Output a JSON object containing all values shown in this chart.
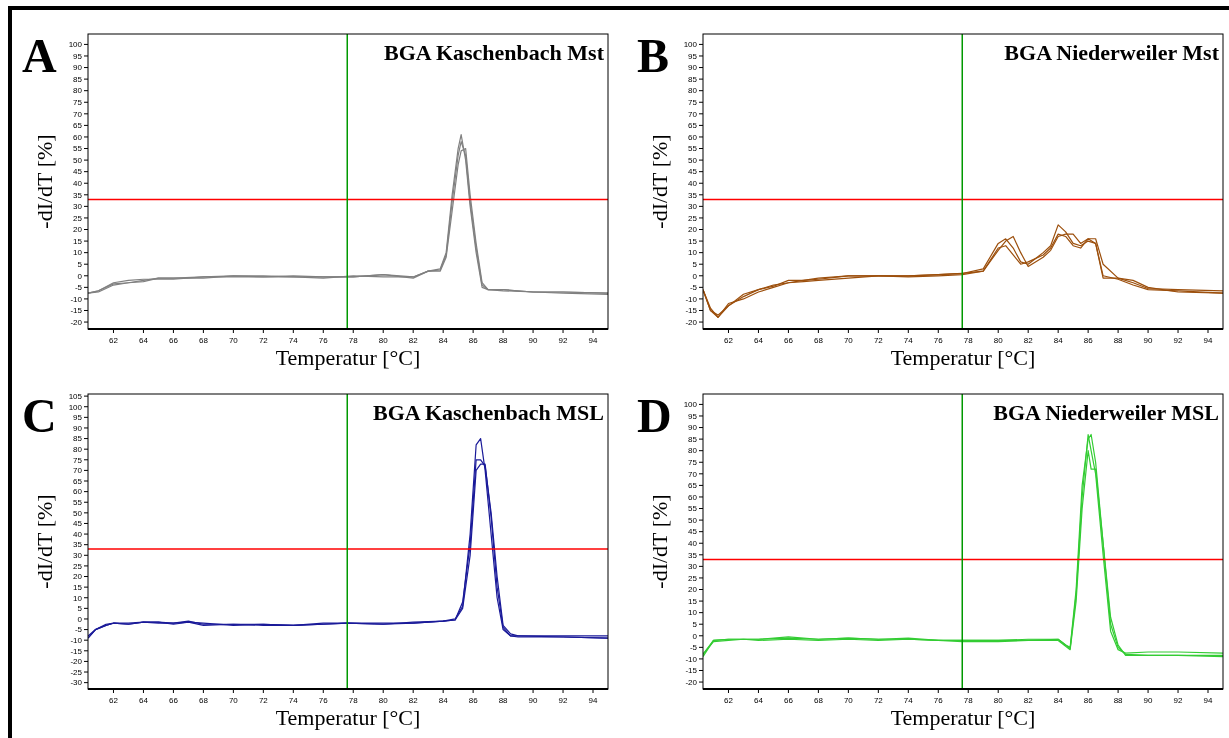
{
  "chart_data": [
    {
      "type": "line",
      "title": "BGA Kaschenbach Mst",
      "xlabel": "Temperatur [°C]",
      "ylabel": "-dI/dT [%]",
      "annotations": [
        "A"
      ],
      "xlim": [
        60.3,
        95
      ],
      "ylim": [
        -23,
        104.5
      ],
      "xticks": [
        62,
        64,
        66,
        68,
        70,
        72,
        74,
        76,
        78,
        80,
        82,
        84,
        86,
        88,
        90,
        92,
        94
      ],
      "yticks": [
        -20,
        -15,
        -10,
        -5,
        0,
        5,
        10,
        15,
        20,
        25,
        30,
        35,
        40,
        45,
        50,
        55,
        60,
        65,
        70,
        75,
        80,
        85,
        90,
        95,
        100
      ],
      "grid": false,
      "line_style": "solid",
      "ref_lines": [
        {
          "axis": "y",
          "value": 33,
          "color": "#ff0000"
        },
        {
          "axis": "x",
          "value": 77.6,
          "color": "#009900"
        }
      ],
      "series": [
        {
          "color": "#808080",
          "x": [
            60.3,
            61,
            62,
            63,
            64,
            65,
            66,
            68,
            70,
            72,
            74,
            76,
            78,
            80,
            82,
            83,
            83.8,
            84.2,
            84.6,
            85,
            85.2,
            85.5,
            85.8,
            86.2,
            86.6,
            87,
            88,
            90,
            92,
            95
          ],
          "values": [
            -7.5,
            -7,
            -4,
            -3,
            -2,
            -1,
            -1,
            -1,
            0,
            -0.5,
            -0.5,
            -0.5,
            -0.5,
            0.5,
            -0.5,
            2,
            3,
            10,
            35,
            55,
            61,
            50,
            30,
            10,
            -5,
            -6,
            -6,
            -7,
            -7,
            -7.5
          ]
        },
        {
          "color": "#808080",
          "x": [
            60.3,
            61,
            62,
            63,
            64,
            65,
            66,
            68,
            70,
            72,
            74,
            76,
            78,
            80,
            82,
            83,
            83.8,
            84.2,
            84.6,
            85,
            85.2,
            85.5,
            85.8,
            86.2,
            86.6,
            87,
            88,
            90,
            92,
            95
          ],
          "values": [
            -7.5,
            -6.5,
            -3,
            -2,
            -1.5,
            -1.5,
            -1.5,
            -0.5,
            0,
            0,
            -0.5,
            -1,
            0,
            -0.5,
            -0.5,
            2,
            2.5,
            9,
            32,
            52,
            58,
            52,
            32,
            12,
            -4,
            -6,
            -6.5,
            -7,
            -7.5,
            -8
          ]
        },
        {
          "color": "#808080",
          "x": [
            60.3,
            61,
            62,
            63,
            64,
            65,
            66,
            68,
            70,
            72,
            74,
            76,
            78,
            80,
            82,
            83,
            83.8,
            84.2,
            84.6,
            85,
            85.2,
            85.5,
            85.8,
            86.2,
            86.6,
            87,
            88,
            90,
            92,
            95
          ],
          "values": [
            -7.5,
            -6.5,
            -3.5,
            -3,
            -2.5,
            -1,
            -1,
            -0.5,
            -0.5,
            -0.5,
            0,
            -0.5,
            -0.5,
            0.5,
            -1,
            2,
            2,
            8,
            28,
            48,
            54,
            55,
            35,
            14,
            -3,
            -6,
            -6,
            -7,
            -7,
            -7.5
          ]
        }
      ]
    },
    {
      "type": "line",
      "title": "BGA Niederweiler Mst",
      "xlabel": "Temperatur [°C]",
      "ylabel": "-dI/dT [%]",
      "annotations": [
        "B"
      ],
      "xlim": [
        60.3,
        95
      ],
      "ylim": [
        -23,
        104.5
      ],
      "xticks": [
        62,
        64,
        66,
        68,
        70,
        72,
        74,
        76,
        78,
        80,
        82,
        84,
        86,
        88,
        90,
        92,
        94
      ],
      "yticks": [
        -20,
        -15,
        -10,
        -5,
        0,
        5,
        10,
        15,
        20,
        25,
        30,
        35,
        40,
        45,
        50,
        55,
        60,
        65,
        70,
        75,
        80,
        85,
        90,
        95,
        100
      ],
      "grid": false,
      "line_style": "solid",
      "ref_lines": [
        {
          "axis": "y",
          "value": 33,
          "color": "#ff0000"
        },
        {
          "axis": "x",
          "value": 77.6,
          "color": "#009900"
        }
      ],
      "series": [
        {
          "color": "#9c4f0c",
          "x": [
            60.3,
            60.8,
            61.3,
            62,
            63,
            64,
            65,
            66,
            67,
            68,
            70,
            72,
            74,
            76,
            77.6,
            79,
            80,
            80.5,
            81,
            81.5,
            82,
            83,
            83.5,
            84,
            84.5,
            85,
            85.5,
            86,
            86.5,
            87,
            88,
            89,
            90,
            92,
            95
          ],
          "values": [
            -6,
            -15,
            -17,
            -13,
            -9,
            -6,
            -4,
            -3,
            -2,
            -1.5,
            0,
            0,
            0,
            0.5,
            1,
            3,
            14,
            16,
            12,
            6,
            5,
            10,
            13,
            22,
            19,
            14,
            13,
            15,
            14,
            -1,
            -1,
            -3,
            -5.5,
            -6,
            -6.5
          ]
        },
        {
          "color": "#9c4f0c",
          "x": [
            60.3,
            60.8,
            61.3,
            62,
            63,
            64,
            65,
            66,
            67,
            68,
            70,
            72,
            74,
            76,
            77.6,
            79,
            80,
            80.5,
            81,
            81.5,
            82,
            83,
            83.5,
            84,
            84.5,
            85,
            85.5,
            86,
            86.5,
            87,
            88,
            89,
            90,
            92,
            95
          ],
          "values": [
            -6,
            -14,
            -18,
            -12,
            -10,
            -7,
            -5,
            -3,
            -2.5,
            -2,
            -1,
            0,
            0,
            0.5,
            1,
            2,
            12,
            13,
            9,
            5,
            6,
            9,
            12,
            18,
            17,
            13,
            12,
            16,
            14,
            0,
            -1.5,
            -4,
            -6,
            -6.5,
            -7.5
          ]
        },
        {
          "color": "#9c4f0c",
          "x": [
            60.3,
            60.8,
            61.3,
            62,
            63,
            64,
            65,
            66,
            67,
            68,
            70,
            72,
            74,
            76,
            77.6,
            79,
            80,
            80.5,
            81,
            81.5,
            82,
            83,
            83.5,
            84,
            84.5,
            85,
            85.5,
            86,
            86.5,
            87,
            88,
            89,
            90,
            92,
            95
          ],
          "values": [
            -6,
            -15,
            -18,
            -13,
            -8,
            -6,
            -4.5,
            -2,
            -2,
            -1,
            0,
            0,
            -0.5,
            0,
            0.5,
            2,
            11,
            15,
            17,
            10,
            4,
            8,
            11,
            17,
            18,
            18,
            14,
            16,
            16,
            5,
            -1,
            -2,
            -5,
            -7,
            -7.5
          ]
        }
      ]
    },
    {
      "type": "line",
      "title": "BGA Kaschenbach MSL",
      "xlabel": "Temperatur [°C]",
      "ylabel": "-dI/dT [%]",
      "annotations": [
        "C"
      ],
      "xlim": [
        60.3,
        95
      ],
      "ylim": [
        -33,
        106
      ],
      "xticks": [
        62,
        64,
        66,
        68,
        70,
        72,
        74,
        76,
        78,
        80,
        82,
        84,
        86,
        88,
        90,
        92,
        94
      ],
      "yticks": [
        -30,
        -25,
        -20,
        -15,
        -10,
        -5,
        0,
        5,
        10,
        15,
        20,
        25,
        30,
        35,
        40,
        45,
        50,
        55,
        60,
        65,
        70,
        75,
        80,
        85,
        90,
        95,
        100,
        105
      ],
      "grid": false,
      "line_style": "solid",
      "ref_lines": [
        {
          "axis": "y",
          "value": 33,
          "color": "#ff0000"
        },
        {
          "axis": "x",
          "value": 77.6,
          "color": "#009900"
        }
      ],
      "series": [
        {
          "color": "#1a1a99",
          "x": [
            60.3,
            60.8,
            61.5,
            62,
            63,
            64,
            65,
            66,
            67,
            68,
            70,
            72,
            74,
            76,
            77.6,
            80,
            82,
            84,
            84.8,
            85.3,
            85.8,
            86.2,
            86.5,
            86.8,
            87.2,
            87.6,
            88,
            88.5,
            89,
            92,
            95
          ],
          "values": [
            -9,
            -5,
            -2.5,
            -2,
            -2,
            -1.5,
            -1.5,
            -2,
            -1,
            -2.5,
            -2.5,
            -2.5,
            -3,
            -2.5,
            -2,
            -2.5,
            -2,
            -1,
            0,
            6,
            40,
            82,
            85,
            70,
            40,
            10,
            -5,
            -8,
            -8,
            -8.5,
            -9
          ]
        },
        {
          "color": "#1a1a99",
          "x": [
            60.3,
            60.8,
            61.5,
            62,
            63,
            64,
            65,
            66,
            67,
            68,
            70,
            72,
            74,
            76,
            77.6,
            80,
            82,
            84,
            84.8,
            85.3,
            85.8,
            86.2,
            86.5,
            86.8,
            87.2,
            87.6,
            88,
            88.5,
            89,
            92,
            95
          ],
          "values": [
            -9,
            -5,
            -3,
            -2,
            -2.5,
            -1.5,
            -2,
            -2,
            -1.5,
            -2,
            -3,
            -2.5,
            -3,
            -2,
            -2,
            -2,
            -2,
            -1,
            -0.5,
            8,
            35,
            75,
            75,
            72,
            50,
            20,
            -3,
            -7,
            -8,
            -8,
            -8
          ]
        },
        {
          "color": "#1a1a99",
          "x": [
            60.3,
            60.8,
            61.5,
            62,
            63,
            64,
            65,
            66,
            67,
            68,
            70,
            72,
            74,
            76,
            77.6,
            80,
            82,
            84,
            84.8,
            85.3,
            85.8,
            86.2,
            86.5,
            86.8,
            87.2,
            87.6,
            88,
            88.5,
            89,
            92,
            95
          ],
          "values": [
            -8,
            -5,
            -3,
            -2,
            -2.5,
            -1.5,
            -1.5,
            -2.5,
            -1.5,
            -3,
            -2.5,
            -3,
            -3,
            -2.5,
            -2,
            -2.5,
            -1.5,
            -1,
            -0.5,
            5,
            30,
            70,
            73,
            73,
            48,
            15,
            -4,
            -8,
            -8.5,
            -8.5,
            -9
          ]
        }
      ]
    },
    {
      "type": "line",
      "title": "BGA Niederweiler MSL",
      "xlabel": "Temperatur [°C]",
      "ylabel": "-dI/dT [%]",
      "annotations": [
        "D"
      ],
      "xlim": [
        60.3,
        95
      ],
      "ylim": [
        -23,
        104.5
      ],
      "xticks": [
        62,
        64,
        66,
        68,
        70,
        72,
        74,
        76,
        78,
        80,
        82,
        84,
        86,
        88,
        90,
        92,
        94
      ],
      "yticks": [
        -20,
        -15,
        -10,
        -5,
        0,
        5,
        10,
        15,
        20,
        25,
        30,
        35,
        40,
        45,
        50,
        55,
        60,
        65,
        70,
        75,
        80,
        85,
        90,
        95,
        100
      ],
      "grid": false,
      "line_style": "solid",
      "ref_lines": [
        {
          "axis": "y",
          "value": 33,
          "color": "#ff0000"
        },
        {
          "axis": "x",
          "value": 77.6,
          "color": "#009900"
        }
      ],
      "series": [
        {
          "color": "#33cc33",
          "x": [
            60.3,
            61,
            62,
            63,
            64,
            66,
            68,
            70,
            72,
            74,
            76,
            77.6,
            80,
            82,
            84,
            84.5,
            84.8,
            85.2,
            85.6,
            86,
            86.2,
            86.5,
            87,
            87.5,
            88,
            88.5,
            90,
            92,
            95
          ],
          "values": [
            -8,
            -2,
            -1.5,
            -1.5,
            -1.5,
            -1,
            -1.5,
            -1,
            -1.5,
            -1.5,
            -2,
            -2,
            -2,
            -2,
            -1.5,
            -4,
            -5,
            20,
            65,
            85,
            87,
            75,
            40,
            5,
            -5,
            -8,
            -8.5,
            -8.5,
            -9
          ]
        },
        {
          "color": "#33cc33",
          "x": [
            60.3,
            61,
            62,
            63,
            64,
            66,
            68,
            70,
            72,
            74,
            76,
            77.6,
            80,
            82,
            84,
            84.5,
            84.8,
            85.2,
            85.6,
            86,
            86.2,
            86.5,
            87,
            87.5,
            88,
            88.5,
            90,
            92,
            95
          ],
          "values": [
            -8,
            -2.5,
            -2,
            -1.5,
            -2,
            -1.5,
            -2,
            -1.5,
            -2,
            -1.5,
            -2,
            -2.5,
            -2.5,
            -2,
            -2,
            -4.5,
            -6,
            15,
            55,
            80,
            72,
            72,
            40,
            8,
            -4,
            -8.5,
            -8.5,
            -8.5,
            -8.5
          ]
        },
        {
          "color": "#33cc33",
          "x": [
            60.3,
            61,
            62,
            63,
            64,
            66,
            68,
            70,
            72,
            74,
            76,
            77.6,
            80,
            82,
            84,
            84.5,
            84.8,
            85.2,
            85.6,
            86,
            86.2,
            86.5,
            87,
            87.5,
            88,
            88.5,
            90,
            92,
            95
          ],
          "values": [
            -9,
            -2,
            -1.5,
            -1.5,
            -1.5,
            -0.5,
            -1.5,
            -1,
            -1.5,
            -1,
            -2,
            -2,
            -2,
            -1.5,
            -1.5,
            -4,
            -5.5,
            18,
            60,
            87,
            80,
            70,
            35,
            2,
            -6,
            -7.5,
            -7,
            -7,
            -7.5
          ]
        }
      ]
    }
  ]
}
